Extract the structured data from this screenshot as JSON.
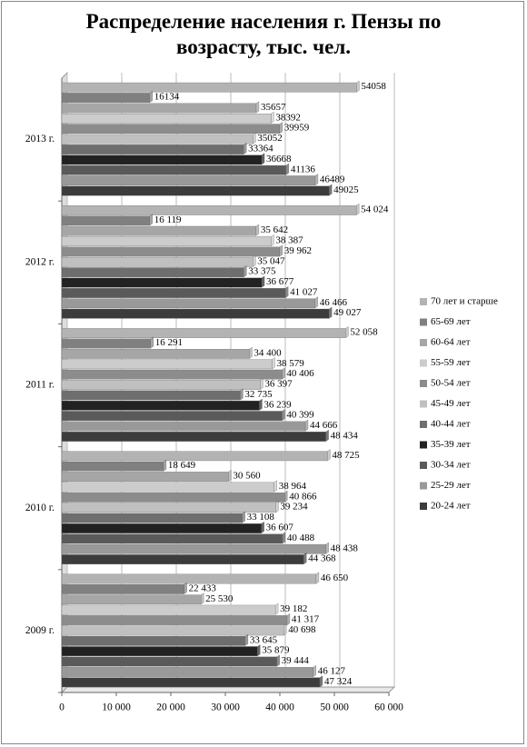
{
  "chart_data": {
    "type": "bar",
    "title": "Распределение населения г. Пензы по возрасту, тыс. чел.",
    "orientation": "horizontal",
    "categories": [
      "2009 г.",
      "2010 г.",
      "2011 г.",
      "2012 г.",
      "2013 г."
    ],
    "series": [
      {
        "name": "70 лет и старше",
        "color": "#b3b3b3",
        "values": [
          46650,
          48725,
          52058,
          54024,
          54058
        ],
        "value_labels": [
          "46 650",
          "48 725",
          "52 058",
          "54 024",
          "54058"
        ]
      },
      {
        "name": "65-69 лет",
        "color": "#808080",
        "values": [
          22433,
          18649,
          16291,
          16119,
          16134
        ],
        "value_labels": [
          "22 433",
          "18 649",
          "16 291",
          "16 119",
          "16134"
        ]
      },
      {
        "name": "60-64 лет",
        "color": "#a6a6a6",
        "values": [
          25530,
          30560,
          34400,
          35642,
          35657
        ],
        "value_labels": [
          "25 530",
          "30 560",
          "34 400",
          "35 642",
          "35657"
        ]
      },
      {
        "name": "55-59 лет",
        "color": "#cccccc",
        "values": [
          39182,
          38964,
          38579,
          38387,
          38392
        ],
        "value_labels": [
          "39 182",
          "38 964",
          "38 579",
          "38 387",
          "38392"
        ]
      },
      {
        "name": "50-54 лет",
        "color": "#8c8c8c",
        "values": [
          41317,
          40866,
          40406,
          39962,
          39959
        ],
        "value_labels": [
          "41 317",
          "40 866",
          "40 406",
          "39 962",
          "39959"
        ]
      },
      {
        "name": "45-49 лет",
        "color": "#c0c0c0",
        "values": [
          40698,
          39234,
          36397,
          35047,
          35052
        ],
        "value_labels": [
          "40 698",
          "39 234",
          "36 397",
          "35 047",
          "35052"
        ]
      },
      {
        "name": "40-44 лет",
        "color": "#6e6e6e",
        "values": [
          33645,
          33108,
          32735,
          33375,
          33364
        ],
        "value_labels": [
          "33 645",
          "33 108",
          "32 735",
          "33 375",
          "33364"
        ]
      },
      {
        "name": "35-39 лет",
        "color": "#222222",
        "values": [
          35879,
          36607,
          36239,
          36677,
          36668
        ],
        "value_labels": [
          "35 879",
          "36 607",
          "36 239",
          "36 677",
          "36668"
        ]
      },
      {
        "name": "30-34 лет",
        "color": "#5a5a5a",
        "values": [
          39444,
          40488,
          40399,
          41027,
          41136
        ],
        "value_labels": [
          "39 444",
          "40 488",
          "40 399",
          "41 027",
          "41136"
        ]
      },
      {
        "name": "25-29 лет",
        "color": "#999999",
        "values": [
          46127,
          48438,
          44666,
          46466,
          46489
        ],
        "value_labels": [
          "46 127",
          "48 438",
          "44 666",
          "46 466",
          "46489"
        ]
      },
      {
        "name": "20-24 лет",
        "color": "#3c3c3c",
        "values": [
          47324,
          44368,
          48434,
          49027,
          49025
        ],
        "value_labels": [
          "47 324",
          "44 368",
          "48 434",
          "49 027",
          "49025"
        ]
      }
    ],
    "xlim": [
      0,
      60000
    ],
    "xticks": [
      0,
      {
        "value": 10000,
        "label": "10 000"
      },
      {
        "value": 20000,
        "label": "20 000"
      },
      {
        "value": 30000,
        "label": "30 000"
      },
      {
        "value": 40000,
        "label": "40 000"
      },
      {
        "value": 50000,
        "label": "50 000"
      },
      {
        "value": 60000,
        "label": "60 000"
      }
    ],
    "grid": true,
    "legend": "right"
  }
}
